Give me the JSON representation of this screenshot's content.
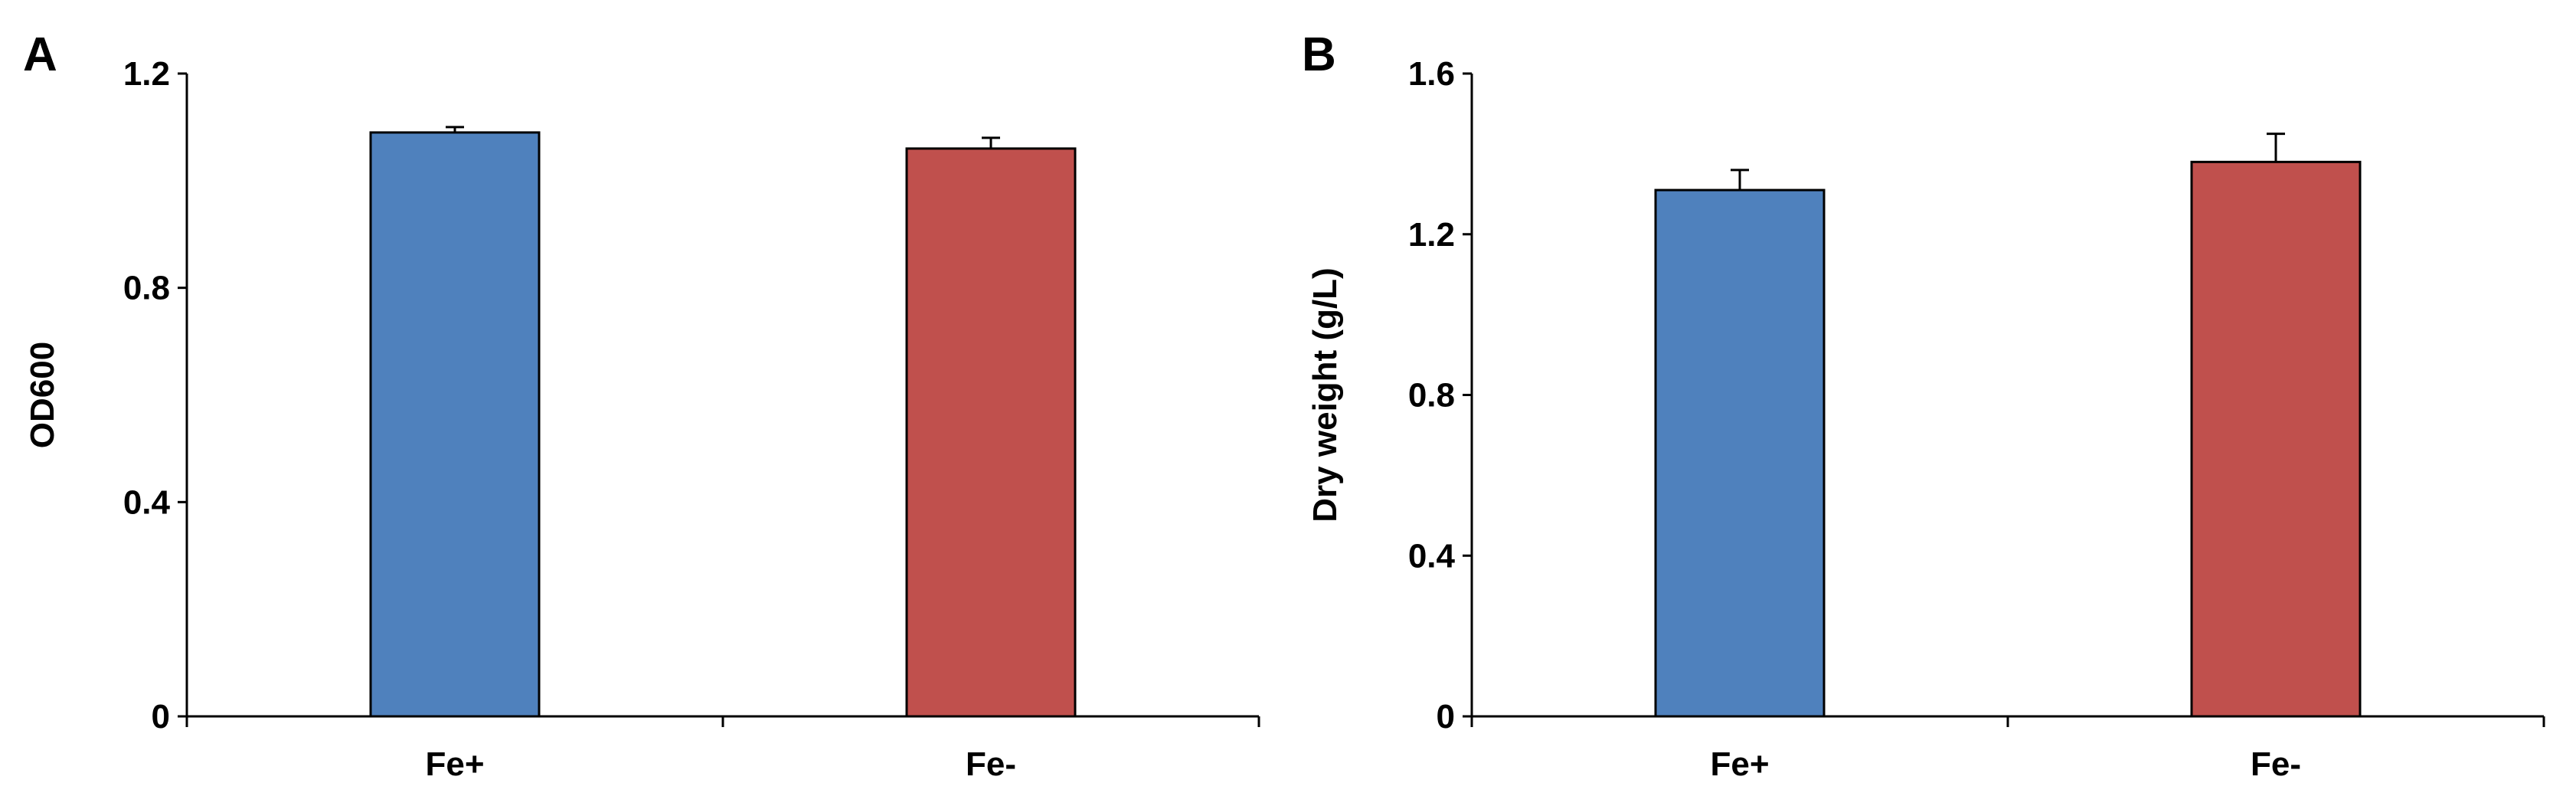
{
  "chart_data": [
    {
      "panel": "A",
      "type": "bar",
      "categories": [
        "Fe+",
        "Fe-"
      ],
      "values": [
        1.09,
        1.06
      ],
      "errors": [
        0.01,
        0.02
      ],
      "colors": [
        "#4f81bd",
        "#c0504d"
      ],
      "xlabel": "",
      "ylabel": "OD600",
      "ylim": [
        0,
        1.2
      ],
      "yticks": [
        0,
        0.4,
        0.8,
        1.2
      ],
      "ytick_labels": [
        "0",
        "0.4",
        "0.8",
        "1.2"
      ]
    },
    {
      "panel": "B",
      "type": "bar",
      "categories": [
        "Fe+",
        "Fe-"
      ],
      "values": [
        1.31,
        1.38
      ],
      "errors": [
        0.05,
        0.07
      ],
      "colors": [
        "#4f81bd",
        "#c0504d"
      ],
      "xlabel": "",
      "ylabel": "Dry weight (g/L)",
      "ylim": [
        0,
        1.6
      ],
      "yticks": [
        0,
        0.4,
        0.8,
        1.2,
        1.6
      ],
      "ytick_labels": [
        "0",
        "0.4",
        "0.8",
        "1.2",
        "1.6"
      ]
    }
  ]
}
